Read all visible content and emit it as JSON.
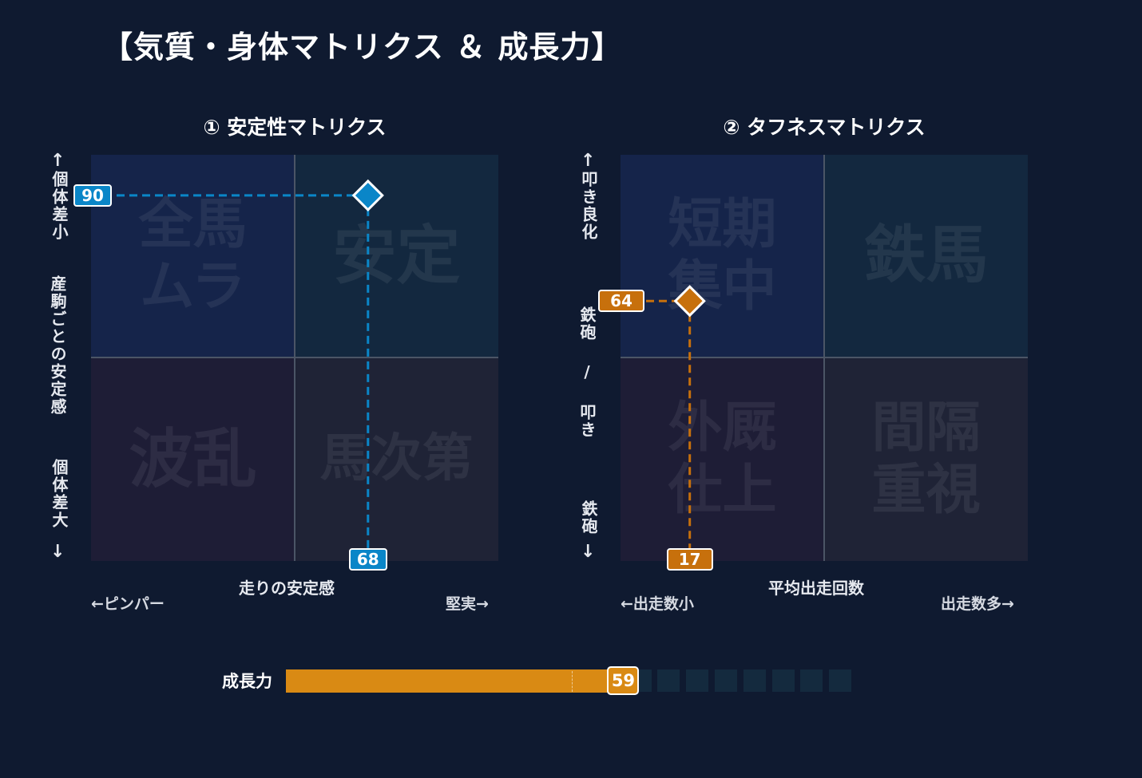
{
  "page_title": "【気質・身体マトリクス ＆ 成長力】",
  "colors": {
    "background": "#0f1a30",
    "stability_accent": "#0a86c8",
    "toughness_accent": "#c7700c",
    "growth_fill": "#d98a14"
  },
  "chart_data": [
    {
      "type": "scatter",
      "title": "① 安定性マトリクス",
      "xlabel": "走りの安定感",
      "x_low_label": "←ピンパー",
      "x_high_label": "堅実→",
      "ylabel": "産駒ごとの安定感",
      "y_high_label": "個体差小",
      "y_low_label": "個体差大",
      "xlim": [
        0,
        100
      ],
      "ylim": [
        0,
        100
      ],
      "quadrants": {
        "top_left": "全馬\nムラ",
        "top_right": "安定",
        "bottom_left": "波乱",
        "bottom_right": "馬次第"
      },
      "point": {
        "x": 68,
        "y": 90,
        "x_label": "68",
        "y_label": "90",
        "color": "#0a86c8"
      }
    },
    {
      "type": "scatter",
      "title": "② タフネスマトリクス",
      "xlabel": "平均出走回数",
      "x_low_label": "←出走数小",
      "x_high_label": "出走数多→",
      "ylabel": "鉄砲 / 叩き",
      "y_high_label": "叩き良化",
      "y_low_label": "鉄砲",
      "xlim": [
        0,
        100
      ],
      "ylim": [
        0,
        100
      ],
      "quadrants": {
        "top_left": "短期\n集中",
        "top_right": "鉄馬",
        "bottom_left": "外厩\n仕上",
        "bottom_right": "間隔\n重視"
      },
      "point": {
        "x": 17,
        "y": 64,
        "x_label": "17",
        "y_label": "64",
        "color": "#c7700c"
      }
    },
    {
      "type": "bar",
      "title": "成長力",
      "value": 59,
      "value_label": "59",
      "max": 100,
      "segments": 20,
      "reference_value": 50
    }
  ]
}
